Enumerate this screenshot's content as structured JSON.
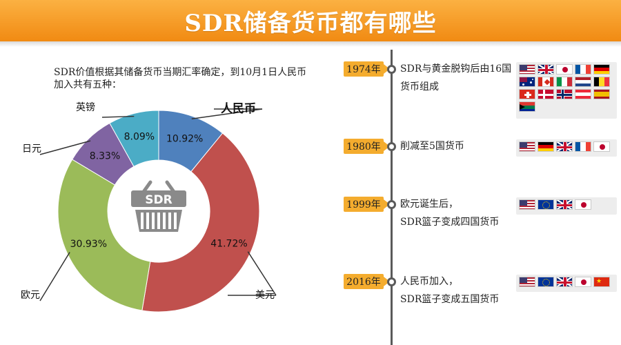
{
  "header": {
    "title": "SDR储备货币都有哪些"
  },
  "intro": {
    "text": "SDR价值根据其储备货币当期汇率确定，到10月1日人民币加入共有五种："
  },
  "chart_data": {
    "type": "pie",
    "donut": true,
    "center_label": "SDR",
    "slices": [
      {
        "label": "人民币",
        "value": 10.92,
        "display": "10.92%",
        "color": "#4f81bd"
      },
      {
        "label": "美元",
        "value": 41.72,
        "display": "41.72%",
        "color": "#c0504d"
      },
      {
        "label": "欧元",
        "value": 30.93,
        "display": "30.93%",
        "color": "#9bbb59"
      },
      {
        "label": "日元",
        "value": 8.33,
        "display": "8.33%",
        "color": "#8064a2"
      },
      {
        "label": "英镑",
        "value": 8.09,
        "display": "8.09%",
        "color": "#4bacc6"
      }
    ]
  },
  "timeline": [
    {
      "year": "1974年",
      "lines": [
        "SDR与黄金脱钩后由16国",
        "货币组成"
      ],
      "flags": [
        "us",
        "gb",
        "jp",
        "fr",
        "de",
        "au",
        "ca",
        "it",
        "nl",
        "be",
        "ch",
        "dk",
        "no",
        "at",
        "es",
        "za"
      ]
    },
    {
      "year": "1980年",
      "lines": [
        "削减至5国货币"
      ],
      "flags": [
        "us",
        "de",
        "gb",
        "fr",
        "jp"
      ]
    },
    {
      "year": "1999年",
      "lines": [
        "欧元诞生后，",
        "SDR篮子变成四国货币"
      ],
      "flags": [
        "us",
        "eu",
        "gb",
        "jp"
      ]
    },
    {
      "year": "2016年",
      "lines": [
        "人民币加入，",
        "SDR篮子变成五国货币"
      ],
      "flags": [
        "us",
        "eu",
        "gb",
        "jp",
        "cn"
      ]
    }
  ]
}
